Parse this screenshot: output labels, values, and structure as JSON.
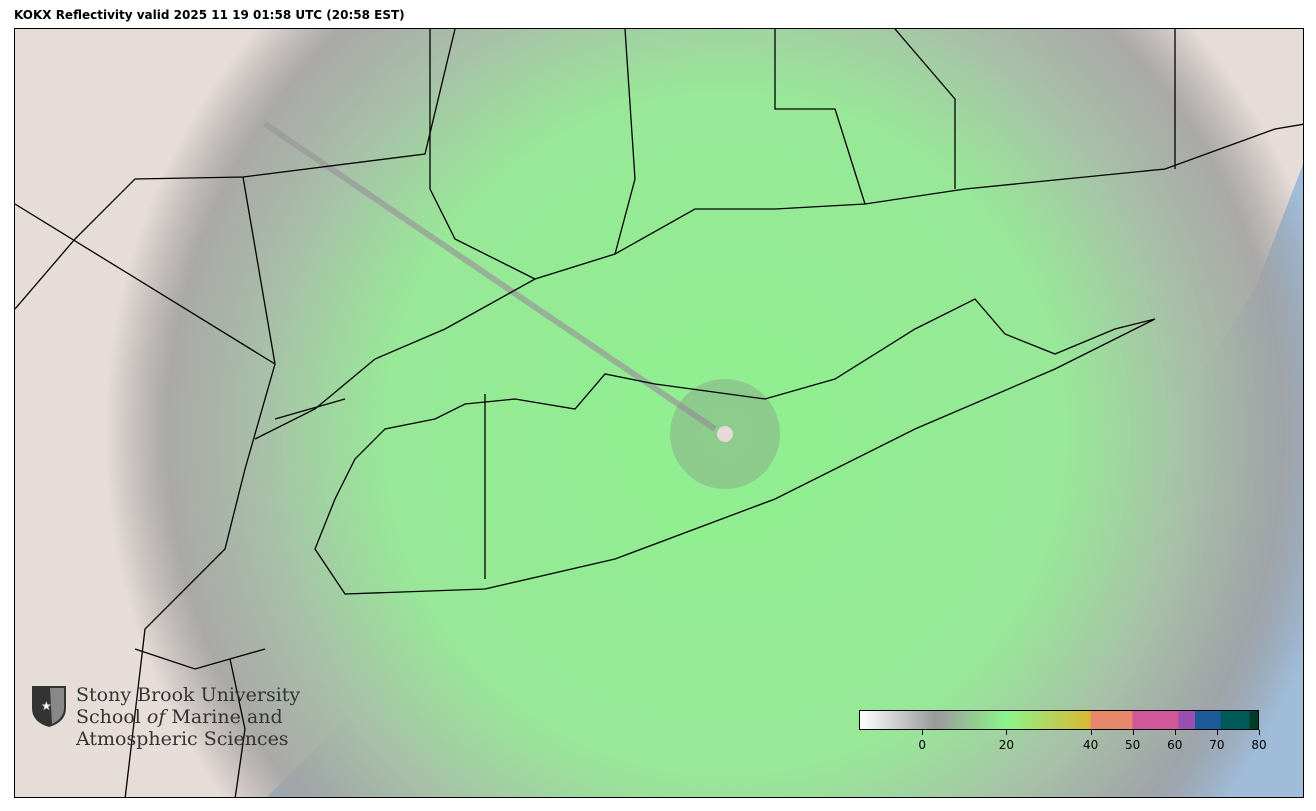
{
  "title": "KOKX Reflectivity valid 2025 11 19 01:58 UTC (20:58 EST)",
  "logo": {
    "line1": "Stony Brook University",
    "line2_a": "School ",
    "line2_b": "of",
    "line2_c": " Marine and",
    "line3": "Atmospheric Sciences"
  },
  "colorbar": {
    "range": [
      -15,
      80
    ],
    "ticks": [
      "0",
      "20",
      "40",
      "50",
      "60",
      "70",
      "80"
    ],
    "tick_values": [
      0,
      20,
      40,
      50,
      60,
      70,
      80
    ],
    "colors": {
      "low": "#ffffff",
      "gray": "#9a9a9a",
      "green": "#8cf58c",
      "yellow": "#d8b832",
      "orange": "#e8886a",
      "pink": "#d0589a",
      "purple": "#9a50b0",
      "blue": "#1e5a9a",
      "teal": "#005a5a",
      "dark": "#003c28"
    }
  },
  "map_colors": {
    "ocean": "#a0bcd8",
    "land": "#e6dcd8",
    "echo_green": "#90ee90",
    "echo_gray": "#a8a8a8"
  }
}
